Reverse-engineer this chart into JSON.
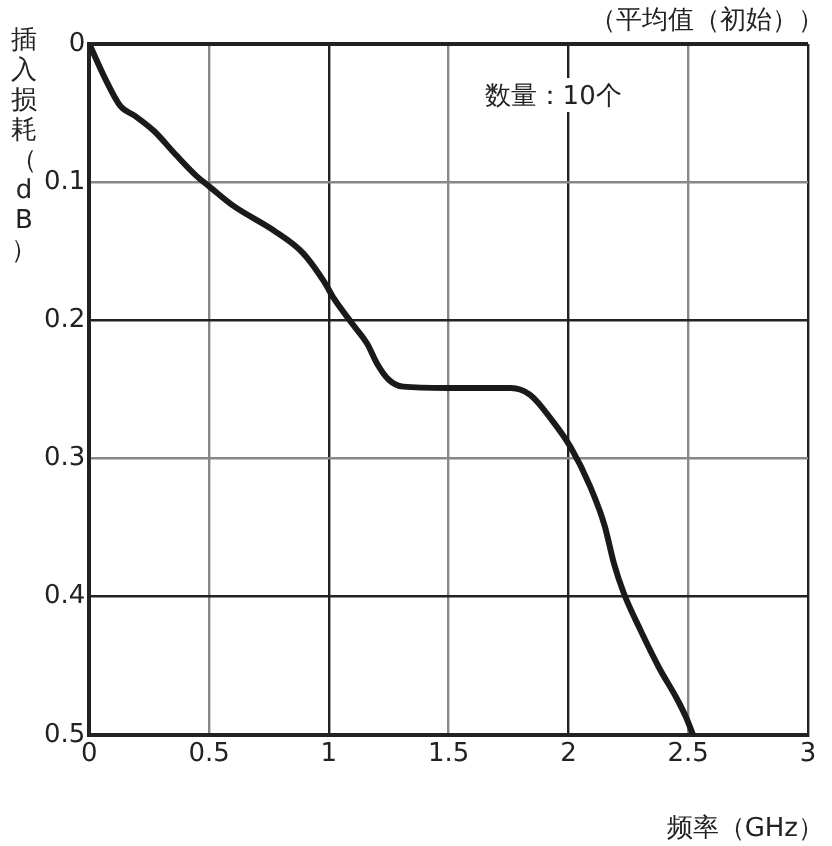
{
  "chart_data": {
    "type": "line",
    "subtitle": "（平均值（初始））",
    "xlabel": "频率（GHz）",
    "ylabel": "插入损耗（dB）",
    "annotations": [
      "数量：10个"
    ],
    "x": [
      0,
      0.066,
      0.13,
      0.19,
      0.27,
      0.36,
      0.45,
      0.5,
      0.6,
      0.77,
      0.89,
      0.98,
      1.02,
      1.1,
      1.16,
      1.2,
      1.25,
      1.31,
      1.49,
      1.76,
      1.84,
      1.93,
      2.01,
      2.09,
      2.15,
      2.19,
      2.23,
      2.3,
      2.38,
      2.45,
      2.49,
      2.52
    ],
    "series": [
      {
        "color": "#1a1a1a",
        "values": [
          0,
          0.025,
          0.045,
          0.052,
          0.063,
          0.08,
          0.096,
          0.103,
          0.117,
          0.135,
          0.151,
          0.172,
          0.184,
          0.203,
          0.217,
          0.231,
          0.243,
          0.248,
          0.249,
          0.249,
          0.254,
          0.272,
          0.292,
          0.32,
          0.348,
          0.376,
          0.397,
          0.424,
          0.452,
          0.473,
          0.487,
          0.5
        ]
      }
    ],
    "xlim": [
      0,
      3
    ],
    "xticks": [
      0,
      0.5,
      1,
      1.5,
      2,
      2.5,
      3
    ],
    "ylim": [
      0.5,
      0
    ],
    "yticks": [
      0,
      0.1,
      0.2,
      0.3,
      0.4,
      0.5
    ],
    "grid": true,
    "line_style": "solid",
    "marker": "none"
  }
}
